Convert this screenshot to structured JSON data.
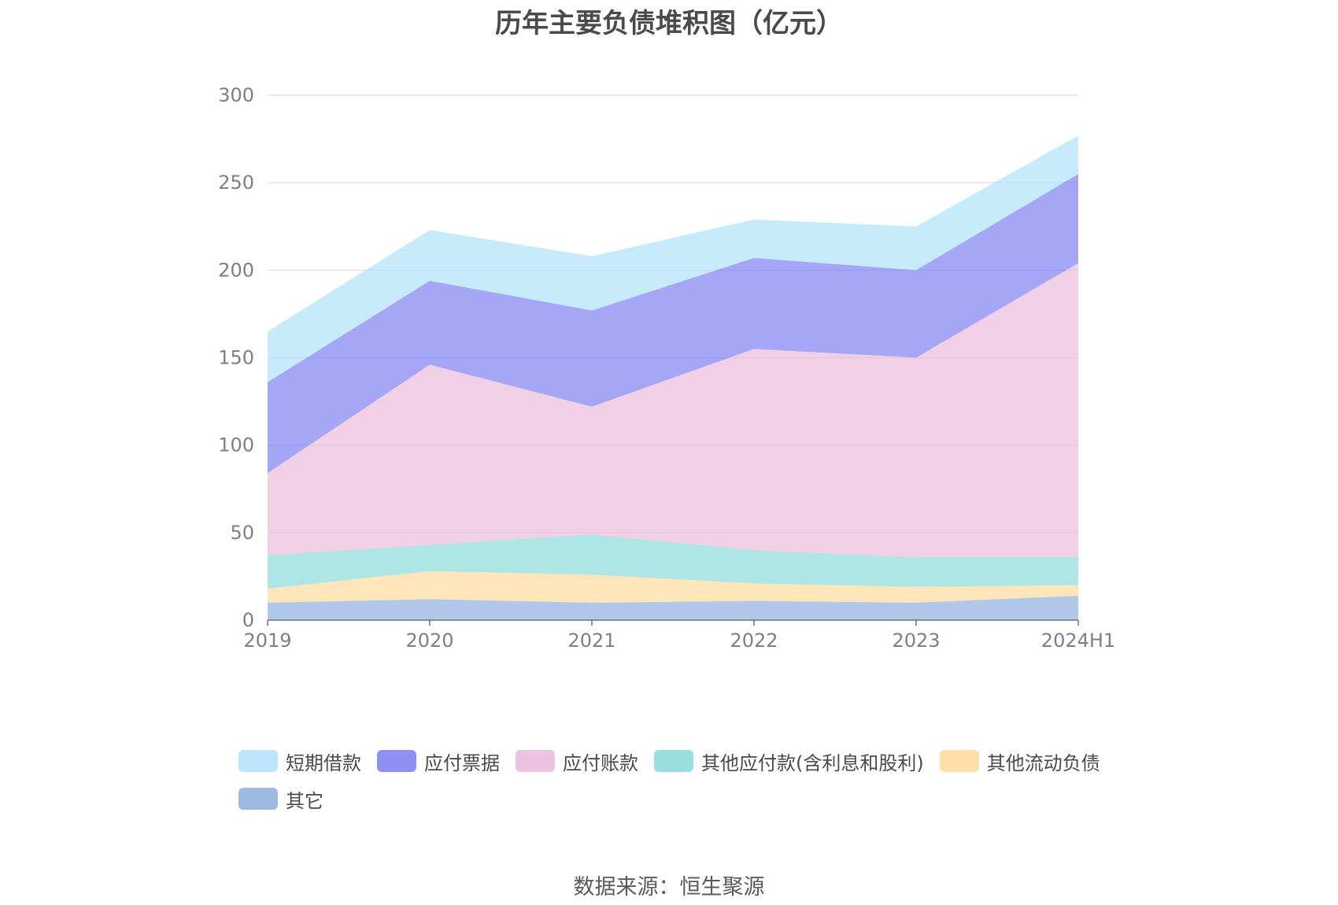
{
  "title": "历年主要负债堆积图（亿元）",
  "source": "数据来源：恒生聚源",
  "chart_data": {
    "type": "area",
    "stacked": true,
    "title": "历年主要负债堆积图（亿元）",
    "x": [
      "2019",
      "2020",
      "2021",
      "2022",
      "2023",
      "2024H1"
    ],
    "ylim": [
      0,
      300
    ],
    "yticks": [
      0,
      50,
      100,
      150,
      200,
      250,
      300
    ],
    "grid": true,
    "legend_position": "bottom",
    "series": [
      {
        "name": "其它",
        "color": "#8eaedd",
        "values": [
          10,
          12,
          10,
          11,
          10,
          14
        ]
      },
      {
        "name": "其他流动负债",
        "color": "#ffd99a",
        "values": [
          8,
          16,
          16,
          10,
          9,
          6
        ]
      },
      {
        "name": "其他应付款(含利息和股利)",
        "color": "#88d8d8",
        "values": [
          19,
          15,
          23,
          19,
          17,
          16
        ]
      },
      {
        "name": "应付账款",
        "color": "#eab9d9",
        "values": [
          47,
          103,
          73,
          115,
          114,
          168
        ]
      },
      {
        "name": "应付票据",
        "color": "#7b7cf1",
        "values": [
          52,
          48,
          55,
          52,
          50,
          51
        ]
      },
      {
        "name": "短期借款",
        "color": "#aee1fa",
        "values": [
          29,
          29,
          31,
          22,
          25,
          22
        ]
      }
    ]
  },
  "legend_order": [
    "短期借款",
    "应付票据",
    "应付账款",
    "其他应付款(含利息和股利)",
    "其他流动负债",
    "其它"
  ]
}
